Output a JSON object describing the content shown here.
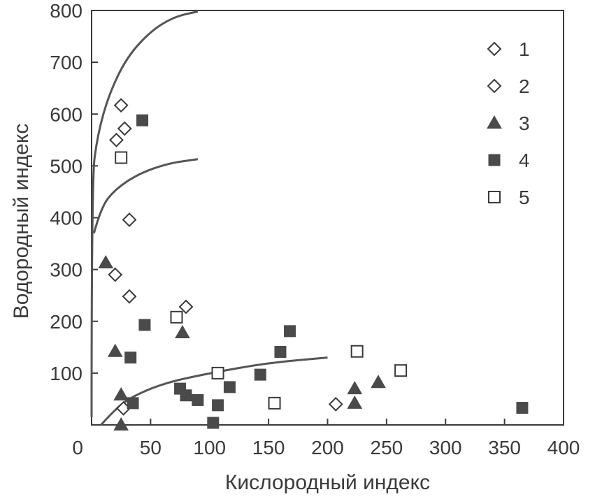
{
  "chart_data": {
    "type": "scatter",
    "xlabel": "Кислородный индекс",
    "ylabel": "Водородный индекс",
    "xlim": [
      0,
      400
    ],
    "ylim": [
      0,
      800
    ],
    "x_ticks": [
      "0",
      "50",
      "100",
      "150",
      "200",
      "250",
      "300",
      "350",
      "400"
    ],
    "y_ticks": [
      "100",
      "200",
      "300",
      "400",
      "500",
      "600",
      "700",
      "800"
    ],
    "x_tick_values": [
      0,
      50,
      100,
      150,
      200,
      250,
      300,
      350,
      400
    ],
    "y_tick_values": [
      100,
      200,
      300,
      400,
      500,
      600,
      700,
      800
    ],
    "grid": false,
    "legend_position": "top-right",
    "colors": {
      "ink": "#3a3a3a",
      "fill": "#4a4a4a",
      "curve": "#555555"
    },
    "series": [
      {
        "name": "1",
        "marker": "diamond-open",
        "points": [
          [
            25,
            617
          ],
          [
            28,
            572
          ],
          [
            21,
            550
          ],
          [
            32,
            396
          ],
          [
            20,
            290
          ],
          [
            32,
            248
          ],
          [
            80,
            228
          ],
          [
            207,
            40
          ],
          [
            27,
            32
          ]
        ]
      },
      {
        "name": "2",
        "marker": "diamond-open",
        "points": []
      },
      {
        "name": "3",
        "marker": "triangle-filled",
        "points": [
          [
            12,
            313
          ],
          [
            20,
            142
          ],
          [
            77,
            178
          ],
          [
            25,
            58
          ],
          [
            25,
            0
          ],
          [
            223,
            70
          ],
          [
            223,
            42
          ],
          [
            243,
            82
          ]
        ]
      },
      {
        "name": "4",
        "marker": "square-filled",
        "points": [
          [
            43,
            588
          ],
          [
            45,
            193
          ],
          [
            33,
            130
          ],
          [
            35,
            42
          ],
          [
            75,
            70
          ],
          [
            80,
            57
          ],
          [
            90,
            48
          ],
          [
            107,
            38
          ],
          [
            103,
            4
          ],
          [
            117,
            73
          ],
          [
            143,
            97
          ],
          [
            160,
            141
          ],
          [
            168,
            181
          ],
          [
            365,
            33
          ]
        ]
      },
      {
        "name": "5",
        "marker": "square-open",
        "points": [
          [
            25,
            516
          ],
          [
            72,
            208
          ],
          [
            107,
            100
          ],
          [
            155,
            42
          ],
          [
            225,
            142
          ],
          [
            262,
            105
          ]
        ]
      }
    ],
    "curves": [
      [
        [
          0,
          15
        ],
        [
          0,
          470
        ],
        [
          5,
          560
        ],
        [
          15,
          640
        ],
        [
          30,
          710
        ],
        [
          50,
          760
        ],
        [
          70,
          788
        ],
        [
          90,
          798
        ]
      ],
      [
        [
          2,
          370
        ],
        [
          8,
          420
        ],
        [
          20,
          455
        ],
        [
          40,
          485
        ],
        [
          65,
          505
        ],
        [
          90,
          513
        ]
      ],
      [
        [
          8,
          0
        ],
        [
          15,
          18
        ],
        [
          30,
          50
        ],
        [
          60,
          80
        ],
        [
          100,
          100
        ],
        [
          150,
          120
        ],
        [
          200,
          130
        ]
      ]
    ]
  }
}
